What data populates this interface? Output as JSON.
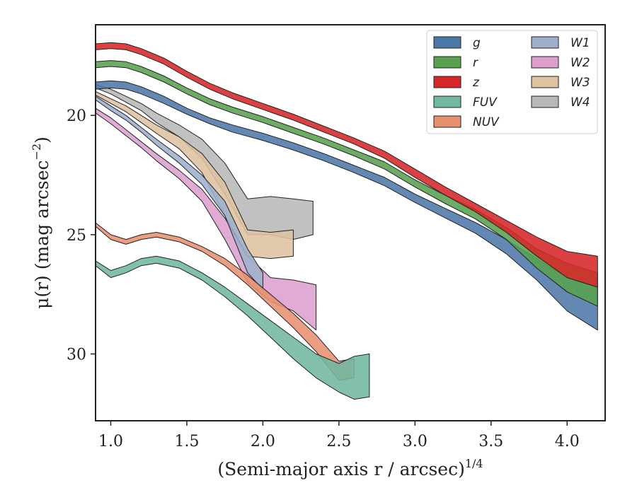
{
  "chart_data": {
    "type": "area",
    "xlabel": "(Semi-major axis r / arcsec)",
    "xlabel_exponent": "1/4",
    "ylabel": "μ(r) (mag arcsec",
    "ylabel_exponent": "−2",
    "ylabel_close": ")",
    "xlim": [
      0.9,
      4.25
    ],
    "ylim": [
      32.8,
      16.2
    ],
    "y_inverted": true,
    "x_ticks": [
      "1.0",
      "1.5",
      "2.0",
      "2.5",
      "3.0",
      "3.5",
      "4.0"
    ],
    "x_tick_values": [
      1.0,
      1.5,
      2.0,
      2.5,
      3.0,
      3.5,
      4.0
    ],
    "y_ticks": [
      "20",
      "25",
      "30"
    ],
    "y_tick_values": [
      20,
      25,
      30
    ],
    "grid": false,
    "legend_position": "top-right",
    "legend_columns": 2,
    "series": [
      {
        "name": "g",
        "color": "#4c78a8",
        "x": [
          0.9,
          1.0,
          1.1,
          1.2,
          1.35,
          1.5,
          1.65,
          1.8,
          2.0,
          2.2,
          2.4,
          2.6,
          2.8,
          3.0,
          3.2,
          3.4,
          3.6,
          3.8,
          4.0,
          4.2
        ],
        "y_bright": [
          18.6,
          18.55,
          18.6,
          18.8,
          19.2,
          19.7,
          20.1,
          20.4,
          20.75,
          21.15,
          21.6,
          22.1,
          22.6,
          23.3,
          23.9,
          24.5,
          25.2,
          26.0,
          26.8,
          27.2
        ],
        "y_faint": [
          18.9,
          18.85,
          18.9,
          19.1,
          19.5,
          19.95,
          20.35,
          20.7,
          21.05,
          21.45,
          21.9,
          22.4,
          22.95,
          23.65,
          24.3,
          24.95,
          25.8,
          26.9,
          28.2,
          29.0
        ]
      },
      {
        "name": "r",
        "color": "#59a14f",
        "x": [
          0.9,
          1.0,
          1.1,
          1.2,
          1.35,
          1.5,
          1.65,
          1.8,
          2.0,
          2.2,
          2.4,
          2.6,
          2.8,
          3.0,
          3.2,
          3.4,
          3.6,
          3.8,
          4.0,
          4.2
        ],
        "y_bright": [
          17.75,
          17.7,
          17.75,
          17.95,
          18.35,
          18.85,
          19.3,
          19.65,
          20.05,
          20.5,
          20.95,
          21.45,
          21.95,
          22.7,
          23.35,
          23.95,
          24.7,
          25.6,
          26.2,
          26.6
        ],
        "y_faint": [
          18.0,
          17.95,
          18.0,
          18.2,
          18.6,
          19.1,
          19.55,
          19.9,
          20.3,
          20.75,
          21.2,
          21.7,
          22.25,
          23.0,
          23.7,
          24.35,
          25.2,
          26.4,
          27.4,
          28.0
        ]
      },
      {
        "name": "z",
        "color": "#d62728",
        "x": [
          0.9,
          1.0,
          1.1,
          1.2,
          1.35,
          1.5,
          1.65,
          1.8,
          2.0,
          2.2,
          2.4,
          2.6,
          2.8,
          3.0,
          3.2,
          3.4,
          3.6,
          3.8,
          4.0,
          4.2
        ],
        "y_bright": [
          17.0,
          16.95,
          17.0,
          17.2,
          17.6,
          18.15,
          18.65,
          19.05,
          19.5,
          19.95,
          20.45,
          20.95,
          21.5,
          22.25,
          23.0,
          23.7,
          24.4,
          25.1,
          25.7,
          25.9
        ],
        "y_faint": [
          17.25,
          17.2,
          17.25,
          17.45,
          17.85,
          18.4,
          18.9,
          19.3,
          19.75,
          20.2,
          20.7,
          21.2,
          21.8,
          22.6,
          23.35,
          24.05,
          24.9,
          25.9,
          26.8,
          27.2
        ]
      },
      {
        "name": "FUV",
        "color": "#72b7a1",
        "x": [
          0.9,
          1.0,
          1.1,
          1.2,
          1.3,
          1.45,
          1.6,
          1.75,
          1.9,
          2.05,
          2.2,
          2.35,
          2.5,
          2.6,
          2.7
        ],
        "y_bright": [
          26.1,
          26.5,
          26.3,
          26.0,
          25.9,
          26.1,
          26.6,
          27.2,
          27.9,
          28.6,
          29.3,
          30.0,
          30.4,
          30.1,
          30.0
        ],
        "y_faint": [
          26.3,
          26.8,
          26.6,
          26.3,
          26.2,
          26.4,
          26.9,
          27.6,
          28.4,
          29.3,
          30.2,
          31.0,
          31.6,
          31.9,
          31.8
        ]
      },
      {
        "name": "NUV",
        "color": "#e8916f",
        "x": [
          0.9,
          1.0,
          1.1,
          1.2,
          1.3,
          1.45,
          1.6,
          1.75,
          1.9,
          2.05,
          2.2,
          2.35,
          2.5,
          2.6
        ],
        "y_bright": [
          24.5,
          25.0,
          25.2,
          25.0,
          24.9,
          25.1,
          25.5,
          26.0,
          26.7,
          27.5,
          28.3,
          29.2,
          30.3,
          30.2
        ],
        "y_faint": [
          24.65,
          25.2,
          25.4,
          25.2,
          25.1,
          25.3,
          25.7,
          26.3,
          27.1,
          28.0,
          28.9,
          29.9,
          31.1,
          31.0
        ]
      },
      {
        "name": "W1",
        "color": "#9eb0cc",
        "x": [
          0.9,
          1.0,
          1.1,
          1.2,
          1.3,
          1.45,
          1.6,
          1.75,
          1.9,
          2.0
        ],
        "y_bright": [
          19.2,
          19.6,
          20.0,
          20.5,
          21.0,
          21.7,
          22.5,
          23.6,
          25.6,
          26.6
        ],
        "y_faint": [
          19.35,
          19.8,
          20.2,
          20.7,
          21.25,
          22.0,
          22.9,
          24.2,
          26.6,
          27.3
        ]
      },
      {
        "name": "W2",
        "color": "#dc9fce",
        "x": [
          0.9,
          1.0,
          1.1,
          1.2,
          1.3,
          1.45,
          1.6,
          1.75,
          1.9,
          2.05,
          2.2,
          2.35
        ],
        "y_bright": [
          19.7,
          20.1,
          20.6,
          21.1,
          21.6,
          22.3,
          23.1,
          24.3,
          25.9,
          26.8,
          26.9,
          27.1
        ],
        "y_faint": [
          19.9,
          20.35,
          20.85,
          21.35,
          21.9,
          22.65,
          23.6,
          25.2,
          27.0,
          27.8,
          28.2,
          29.0
        ]
      },
      {
        "name": "W3",
        "color": "#dfc29f",
        "x": [
          0.9,
          1.0,
          1.1,
          1.2,
          1.3,
          1.45,
          1.6,
          1.75,
          1.9,
          2.05,
          2.2
        ],
        "y_bright": [
          19.0,
          19.3,
          19.6,
          20.0,
          20.4,
          20.9,
          21.6,
          22.8,
          24.8,
          24.9,
          24.8
        ],
        "y_faint": [
          19.15,
          19.5,
          19.85,
          20.3,
          20.75,
          21.4,
          22.4,
          24.2,
          25.9,
          26.0,
          25.9
        ]
      },
      {
        "name": "W4",
        "color": "#b8b8b8",
        "x": [
          0.9,
          1.0,
          1.1,
          1.2,
          1.3,
          1.45,
          1.6,
          1.75,
          1.9,
          2.05,
          2.2,
          2.33
        ],
        "y_bright": [
          18.7,
          18.9,
          19.2,
          19.5,
          19.9,
          20.4,
          21.0,
          22.0,
          23.5,
          23.4,
          23.5,
          23.6
        ],
        "y_faint": [
          18.85,
          19.1,
          19.45,
          19.8,
          20.3,
          20.9,
          21.8,
          23.3,
          25.0,
          25.0,
          25.2,
          25.0
        ]
      }
    ]
  }
}
